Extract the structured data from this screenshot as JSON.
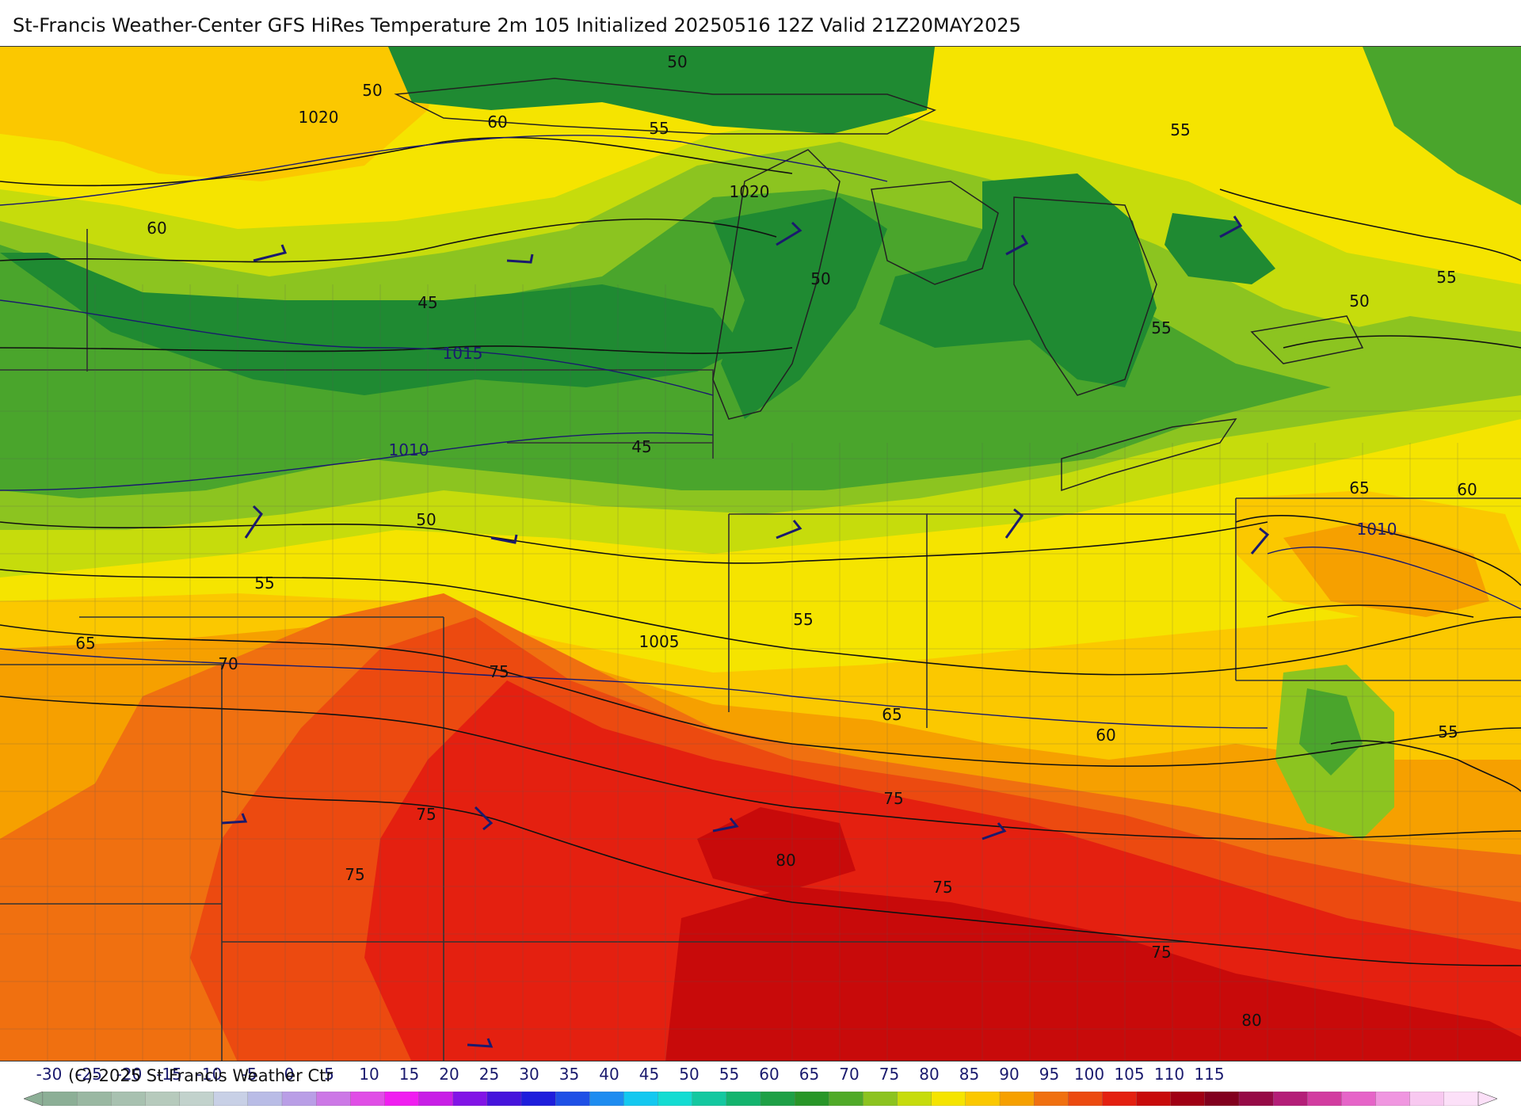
{
  "title": "St-Francis Weather-Center GFS HiRes Temperature 2m  105 Initialized 20250516 12Z Valid 21Z20MAY2025",
  "copyright": "(C)-2025 St Francis Weather Ctr",
  "colors": {
    "deep_green": "#1f8a32",
    "green": "#4aa52c",
    "light_green": "#8cc420",
    "yellow_green": "#c6dc0c",
    "yellow": "#f5e400",
    "gold": "#fbc800",
    "orange": "#f6a000",
    "orange_red": "#f07010",
    "red_orange": "#ec4a10",
    "red": "#e42010",
    "dark_red": "#c80a0a"
  },
  "temperature_contour_labels": [
    "50",
    "1020",
    "60",
    "50",
    "55",
    "55",
    "60",
    "1020",
    "50",
    "55",
    "55",
    "50",
    "45",
    "1015",
    "1010",
    "45",
    "50",
    "55",
    "55",
    "65",
    "1005",
    "70",
    "75",
    "65",
    "60",
    "65",
    "60",
    "1010",
    "75",
    "75",
    "75",
    "80",
    "75",
    "55",
    "75",
    "80"
  ],
  "colorbar": {
    "labels": [
      "-30",
      "-25",
      "-20",
      "-15",
      "-10",
      "-5",
      "0",
      "5",
      "10",
      "15",
      "20",
      "25",
      "30",
      "35",
      "40",
      "45",
      "50",
      "55",
      "60",
      "65",
      "70",
      "75",
      "80",
      "85",
      "90",
      "95",
      "100",
      "105",
      "110",
      "115"
    ],
    "colors": [
      "#8caf96",
      "#9ab8a2",
      "#a8c1b0",
      "#b6cabc",
      "#c2d2cc",
      "#c8d0e6",
      "#b9bce6",
      "#b99ee6",
      "#cc78e6",
      "#e04ee6",
      "#f01ef0",
      "#c81ee6",
      "#8214e6",
      "#4614dc",
      "#1e1edc",
      "#1e50e6",
      "#1e8cf0",
      "#14c8f0",
      "#14dcd2",
      "#14c8a0",
      "#14b46e",
      "#1ea046",
      "#289628",
      "#50aa28",
      "#8cc320",
      "#c6dc0c",
      "#f5e400",
      "#fbc800",
      "#f6a000",
      "#f07010",
      "#ec4a10",
      "#e42010",
      "#c80a0a",
      "#a00014",
      "#82001e",
      "#960a46",
      "#b41e78",
      "#d23ca0",
      "#e664c8",
      "#f096e0",
      "#f8c8f0",
      "#fce0f8"
    ]
  }
}
